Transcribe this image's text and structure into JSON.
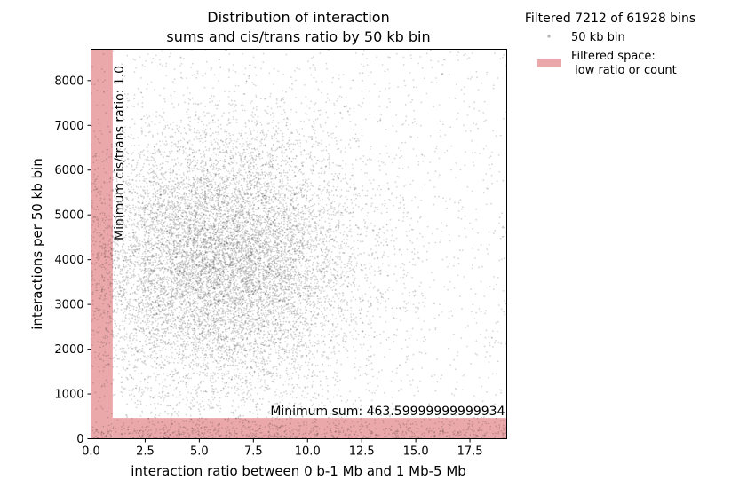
{
  "chart_data": {
    "type": "scatter",
    "title_lines": [
      "Distribution of interaction",
      "sums and cis/trans ratio by 50 kb bin"
    ],
    "xlabel": "interaction ratio between 0 b-1 Mb and 1 Mb-5 Mb",
    "ylabel": "interactions per 50 kb bin",
    "xlim": [
      0,
      19.2
    ],
    "ylim": [
      0,
      8700
    ],
    "xticks": [
      0.0,
      2.5,
      5.0,
      7.5,
      10.0,
      12.5,
      15.0,
      17.5
    ],
    "xtick_labels": [
      "0.0",
      "2.5",
      "5.0",
      "7.5",
      "10.0",
      "12.5",
      "15.0",
      "17.5"
    ],
    "yticks": [
      0,
      1000,
      2000,
      3000,
      4000,
      5000,
      6000,
      7000,
      8000
    ],
    "ytick_labels": [
      "0",
      "1000",
      "2000",
      "3000",
      "4000",
      "5000",
      "6000",
      "7000",
      "8000"
    ],
    "filter": {
      "min_ratio": 1.0,
      "min_sum": 463.59999999999934,
      "color": "#e8999b"
    },
    "annotations": {
      "min_ratio_label": "Minimum cis/trans ratio: 1.0",
      "min_sum_label": "Minimum sum: 463.59999999999934"
    },
    "legend": {
      "title": "Filtered 7212 of 61928 bins",
      "points_label": "50 kb bin",
      "filtered_label_line1": "Filtered space:",
      "filtered_label_line2": " low ratio or count"
    },
    "series": [
      {
        "name": "50 kb bin",
        "color": "#000000",
        "total_points": 61928,
        "distribution": {
          "center_ratio": 6.0,
          "center_sum": 4000,
          "spread_ratio": 3.2,
          "spread_sum": 1500
        }
      }
    ]
  }
}
